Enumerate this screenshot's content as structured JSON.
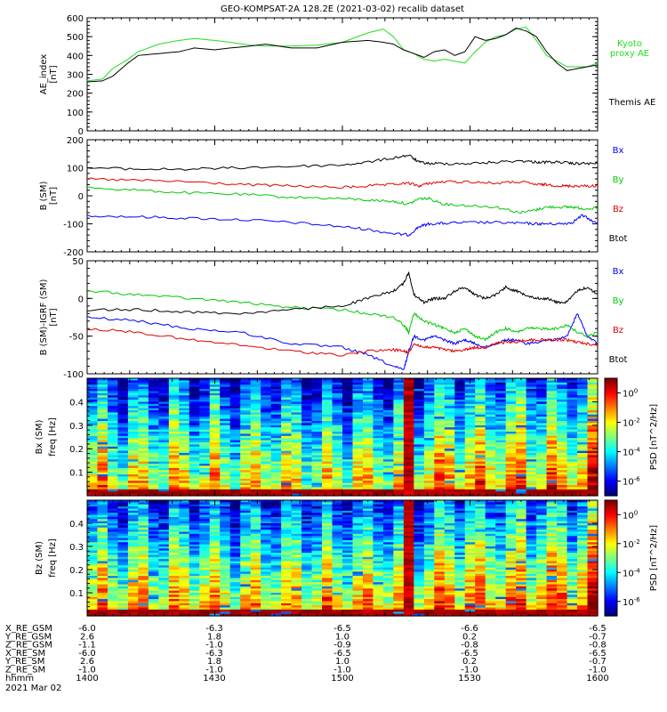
{
  "title": "GEO-KOMPSAT-2A 128.2E (2021-03-02) recalib dataset",
  "colors": {
    "black": "#000000",
    "blue": "#0000ff",
    "green": "#00c800",
    "red": "#e00000",
    "kyoto": "#22dd22"
  },
  "chart_data": [
    {
      "type": "line",
      "panel": "ae",
      "ylabel": [
        "AE_index",
        "[nT]"
      ],
      "ylim": [
        0,
        600
      ],
      "yticks": [
        0,
        100,
        200,
        300,
        400,
        500,
        600
      ],
      "x": [
        0,
        3,
        5,
        8,
        10,
        14,
        18,
        21,
        25,
        28,
        32,
        35,
        40,
        45,
        50,
        55,
        58,
        60,
        62,
        64,
        66,
        68,
        70,
        72,
        74,
        76,
        78,
        80,
        82,
        84,
        86,
        88,
        90,
        92,
        94,
        96,
        98,
        100
      ],
      "series": [
        {
          "name": "Kyoto\nproxy AE",
          "color": "#22dd22",
          "values": [
            265,
            275,
            330,
            380,
            420,
            460,
            480,
            490,
            480,
            470,
            455,
            450,
            450,
            455,
            470,
            520,
            540,
            500,
            430,
            410,
            380,
            370,
            380,
            370,
            360,
            420,
            470,
            500,
            510,
            540,
            550,
            480,
            400,
            370,
            340,
            340,
            340,
            360
          ]
        },
        {
          "name": "Themis AE",
          "color": "#000000",
          "values": [
            260,
            265,
            290,
            360,
            400,
            410,
            420,
            440,
            430,
            440,
            450,
            460,
            440,
            440,
            470,
            480,
            470,
            460,
            430,
            410,
            390,
            420,
            430,
            400,
            420,
            500,
            480,
            490,
            510,
            545,
            530,
            500,
            420,
            360,
            320,
            330,
            340,
            350
          ]
        }
      ]
    },
    {
      "type": "line",
      "panel": "b",
      "ylabel": [
        "B (SM)",
        "[nT]"
      ],
      "ylim": [
        -200,
        200
      ],
      "yticks": [
        -200,
        -100,
        0,
        100,
        200
      ],
      "x": [
        0,
        10,
        20,
        30,
        40,
        50,
        55,
        60,
        63,
        65,
        67,
        70,
        75,
        80,
        85,
        88,
        90,
        93,
        95,
        97,
        100
      ],
      "series": [
        {
          "name": "Bx",
          "color": "#0000ff",
          "values": [
            -70,
            -75,
            -80,
            -85,
            -95,
            -110,
            -120,
            -135,
            -140,
            -110,
            -100,
            -98,
            -95,
            -95,
            -98,
            -100,
            -100,
            -100,
            -95,
            -70,
            -100
          ]
        },
        {
          "name": "By",
          "color": "#00c800",
          "values": [
            30,
            20,
            10,
            5,
            -5,
            -10,
            -15,
            -20,
            -30,
            -10,
            -10,
            -30,
            -35,
            -40,
            -60,
            -50,
            -40,
            -40,
            -40,
            -45,
            -45
          ]
        },
        {
          "name": "Bz",
          "color": "#e00000",
          "values": [
            60,
            55,
            50,
            40,
            35,
            30,
            35,
            40,
            45,
            35,
            45,
            50,
            50,
            45,
            50,
            40,
            40,
            35,
            35,
            35,
            35
          ]
        },
        {
          "name": "Btot",
          "color": "#000000",
          "values": [
            100,
            95,
            95,
            100,
            105,
            110,
            120,
            135,
            145,
            120,
            115,
            115,
            115,
            120,
            125,
            120,
            120,
            120,
            115,
            115,
            115
          ]
        }
      ]
    },
    {
      "type": "line",
      "panel": "dbg",
      "ylabel": [
        "B (SM)-IGRF (SM)",
        "[nT]"
      ],
      "ylim": [
        -100,
        50
      ],
      "yticks": [
        -100,
        -50,
        0,
        50
      ],
      "x": [
        0,
        10,
        20,
        30,
        40,
        50,
        55,
        60,
        62,
        63,
        64,
        66,
        68,
        70,
        72,
        74,
        76,
        78,
        80,
        82,
        84,
        86,
        88,
        90,
        92,
        94,
        96,
        98,
        100
      ],
      "series": [
        {
          "name": "Bx",
          "color": "#0000ff",
          "values": [
            -25,
            -30,
            -40,
            -45,
            -60,
            -65,
            -75,
            -90,
            -95,
            -70,
            -50,
            -55,
            -50,
            -55,
            -60,
            -55,
            -60,
            -65,
            -60,
            -55,
            -55,
            -60,
            -58,
            -55,
            -55,
            -50,
            -20,
            -50,
            -60
          ]
        },
        {
          "name": "By",
          "color": "#00c800",
          "values": [
            10,
            5,
            0,
            -5,
            -12,
            -15,
            -20,
            -25,
            -35,
            -45,
            -20,
            -30,
            -35,
            -40,
            -45,
            -40,
            -50,
            -55,
            -45,
            -40,
            -45,
            -40,
            -40,
            -40,
            -40,
            -35,
            -45,
            -50,
            -45
          ]
        },
        {
          "name": "Bz",
          "color": "#e00000",
          "values": [
            -40,
            -45,
            -55,
            -62,
            -70,
            -75,
            -70,
            -68,
            -70,
            -72,
            -60,
            -65,
            -65,
            -68,
            -70,
            -68,
            -65,
            -65,
            -60,
            -58,
            -58,
            -55,
            -55,
            -55,
            -55,
            -55,
            -58,
            -60,
            -62
          ]
        },
        {
          "name": "Btot",
          "color": "#000000",
          "values": [
            -15,
            -15,
            -18,
            -20,
            -15,
            -10,
            0,
            10,
            20,
            35,
            5,
            -5,
            0,
            0,
            10,
            15,
            5,
            0,
            5,
            15,
            10,
            5,
            0,
            0,
            -5,
            -5,
            10,
            15,
            5
          ]
        }
      ]
    },
    {
      "type": "heatmap",
      "panel": "bx_spec",
      "ylabel": [
        "Bx (SM)",
        "freq [Hz]"
      ],
      "ylim": [
        0,
        0.5
      ],
      "yticks": [
        0.1,
        0.2,
        0.3,
        0.4
      ],
      "colorbar_label": "PSD [nT^2/Hz]",
      "colorbar_ticks": [
        "10^0",
        "10^-2",
        "10^-4",
        "10^-6"
      ],
      "colorbar_range_exp": [
        -7,
        1
      ]
    },
    {
      "type": "heatmap",
      "panel": "bz_spec",
      "ylabel": [
        "Bz (SM)",
        "freq [Hz]"
      ],
      "ylim": [
        0,
        0.5
      ],
      "yticks": [
        0.1,
        0.2,
        0.3,
        0.4
      ],
      "colorbar_label": "PSD [nT^2/Hz]",
      "colorbar_ticks": [
        "10^0",
        "10^-2",
        "10^-4",
        "10^-6"
      ],
      "colorbar_range_exp": [
        -7,
        1
      ]
    }
  ],
  "ephemeris": {
    "rows": [
      {
        "label": "X_RE_GSM",
        "values": [
          "-6.0",
          "-6.3",
          "-6.5",
          "-6.6",
          "-6.5"
        ]
      },
      {
        "label": "Y_RE_GSM",
        "values": [
          "2.6",
          "1.8",
          "1.0",
          "0.2",
          "-0.7"
        ]
      },
      {
        "label": "Z_RE_GSM",
        "values": [
          "-1.1",
          "-1.0",
          "-0.9",
          "-0.8",
          "-0.8"
        ]
      },
      {
        "label": "X_RE_SM",
        "values": [
          "-6.0",
          "-6.3",
          "-6.5",
          "-6.5",
          "-6.5"
        ]
      },
      {
        "label": "Y_RE_SM",
        "values": [
          "2.6",
          "1.8",
          "1.0",
          "0.2",
          "-0.7"
        ]
      },
      {
        "label": "Z_RE_SM",
        "values": [
          "-1.0",
          "-1.0",
          "-1.0",
          "-1.0",
          "-1.0"
        ]
      },
      {
        "label": "hhmm",
        "values": [
          "1400",
          "1430",
          "1500",
          "1530",
          "1600"
        ]
      }
    ],
    "date": "2021 Mar 02"
  }
}
